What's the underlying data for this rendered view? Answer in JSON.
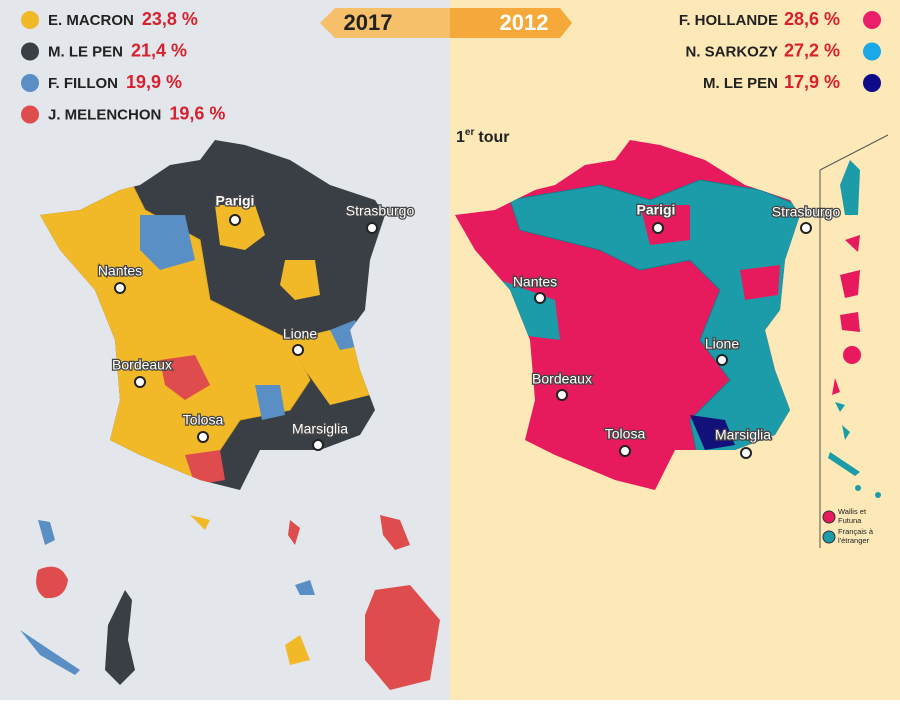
{
  "left": {
    "year": "2017",
    "legend": [
      {
        "name": "E. MACRON",
        "value": "23,8 %",
        "color": "#f1b928"
      },
      {
        "name": "M. LE PEN",
        "value": "21,4 %",
        "color": "#3a3f45"
      },
      {
        "name": "F. FILLON",
        "value": "19,9 %",
        "color": "#5a8fc6"
      },
      {
        "name": "J. MELENCHON",
        "value": "19,6 %",
        "color": "#df4c4d"
      }
    ],
    "cities": [
      "Parigi",
      "Strasburgo",
      "Nantes",
      "Lione",
      "Bordeaux",
      "Tolosa",
      "Marsiglia"
    ]
  },
  "right": {
    "year": "2012",
    "round": {
      "number": "1",
      "suffix": "er",
      "word": "tour"
    },
    "legend": [
      {
        "name": "F. HOLLANDE",
        "value": "28,6 %",
        "color": "#ea1e6b"
      },
      {
        "name": "N. SARKOZY",
        "value": "27,2 %",
        "color": "#1aa8e8"
      },
      {
        "name": "M. LE PEN",
        "value": "17,9 %",
        "color": "#0c0a8a"
      }
    ],
    "cities": [
      "Parigi",
      "Strasburgo",
      "Nantes",
      "Lione",
      "Bordeaux",
      "Tolosa",
      "Marsiglia"
    ],
    "insets": [
      {
        "line1": "Wallis et",
        "line2": "Futuna"
      },
      {
        "line1": "Français à",
        "line2": "l'étranger",
        "line3": ""
      }
    ]
  }
}
